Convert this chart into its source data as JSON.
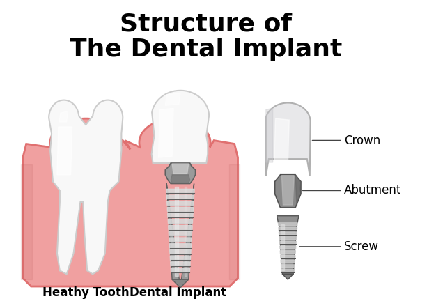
{
  "title_line1": "Structure of",
  "title_line2": "The Dental Implant",
  "title_fontsize": 26,
  "title_fontweight": "bold",
  "label_healthy_tooth": "Heathy Tooth",
  "label_dental_implant": "Dental Implant",
  "label_crown": "Crown",
  "label_abutment": "Abutment",
  "label_screw": "Screw",
  "label_fontsize": 12,
  "bg_color": "#ffffff",
  "gum_fill": "#f0a0a0",
  "gum_edge": "#e07070",
  "gum_shadow": "#e88888",
  "tooth_fill": "#f8f8f8",
  "tooth_edge": "#cccccc",
  "tooth_highlight": "#ffffff",
  "tooth_shadow": "#e0e0e0",
  "metal_base": "#9a9a9a",
  "metal_light": "#d0d0d0",
  "metal_dark": "#606060",
  "metal_highlight": "#e8e8e8",
  "crown_fill": "#e8e8ea",
  "crown_edge": "#b0b0b0",
  "line_color": "#444444"
}
